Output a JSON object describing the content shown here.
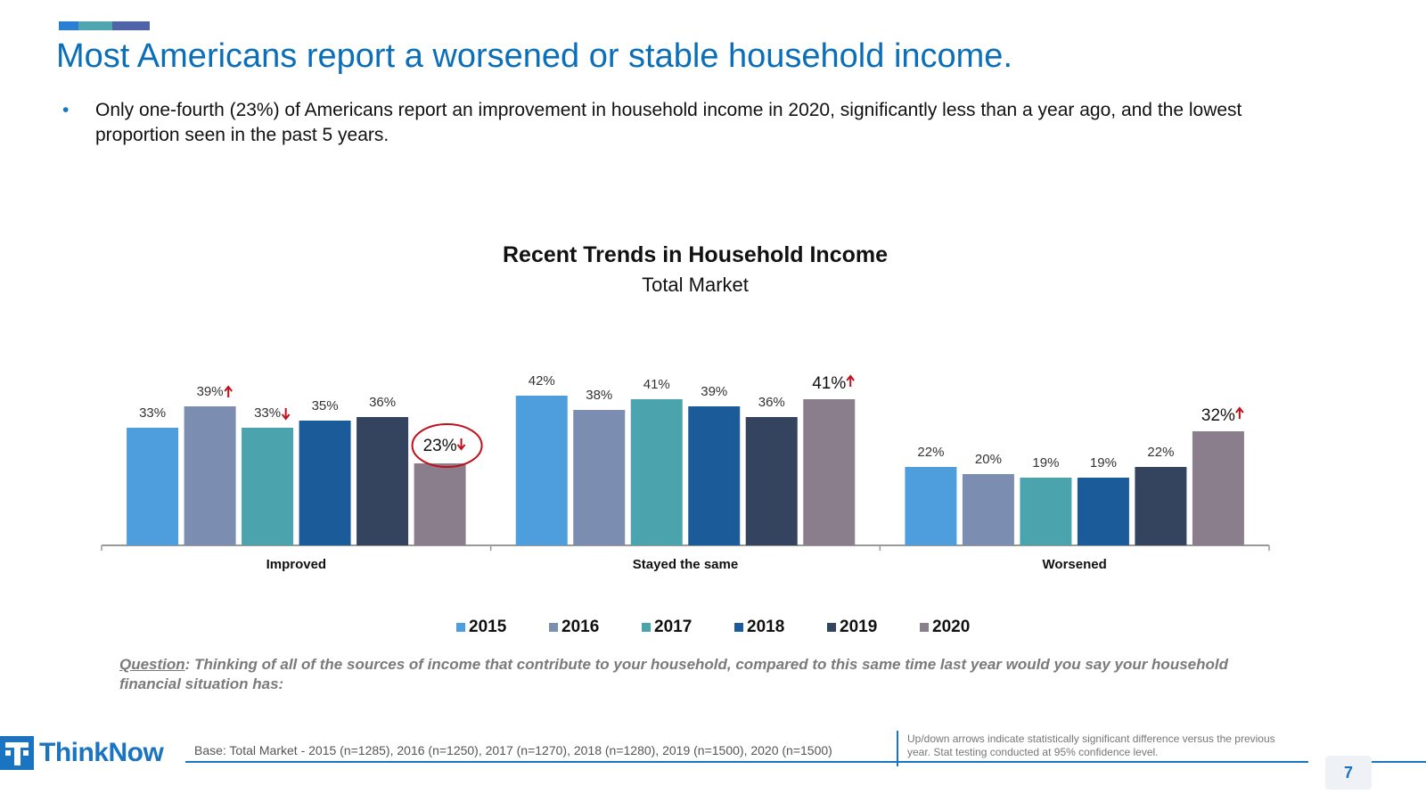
{
  "header": {
    "accent_colors": [
      "#2a7fd4",
      "#4fa6ae",
      "#4e63a8"
    ],
    "title": "Most Americans report a worsened or stable household income.",
    "bullet": "Only one-fourth (23%) of Americans report an improvement in household income in 2020, significantly less than a year ago, and the lowest proportion seen in the past 5 years."
  },
  "chart_data": {
    "type": "bar",
    "title": "Recent Trends in Household Income",
    "subtitle": "Total Market",
    "categories": [
      "Improved",
      "Stayed the same",
      "Worsened"
    ],
    "series": [
      {
        "name": "2015",
        "values": [
          33,
          42,
          22
        ],
        "labels": [
          "33%",
          "42%",
          "22%"
        ],
        "arrows": [
          "",
          "",
          ""
        ],
        "color": "#4e9ede"
      },
      {
        "name": "2016",
        "values": [
          39,
          38,
          20
        ],
        "labels": [
          "39%",
          "38%",
          "20%"
        ],
        "arrows": [
          "up",
          "",
          ""
        ],
        "color": "#7b8eb2"
      },
      {
        "name": "2017",
        "values": [
          33,
          41,
          19
        ],
        "labels": [
          "33%",
          "41%",
          "19%"
        ],
        "arrows": [
          "down",
          "",
          ""
        ],
        "color": "#4ba3ad"
      },
      {
        "name": "2018",
        "values": [
          35,
          39,
          19
        ],
        "labels": [
          "35%",
          "39%",
          "19%"
        ],
        "arrows": [
          "",
          "",
          ""
        ],
        "color": "#1c5b99"
      },
      {
        "name": "2019",
        "values": [
          36,
          36,
          22
        ],
        "labels": [
          "36%",
          "36%",
          "22%"
        ],
        "arrows": [
          "",
          "",
          ""
        ],
        "color": "#34445f"
      },
      {
        "name": "2020",
        "values": [
          23,
          41,
          32
        ],
        "labels": [
          "23%",
          "41%",
          "32%"
        ],
        "arrows": [
          "down",
          "up",
          "up"
        ],
        "color": "#8a7e8c"
      }
    ],
    "highlight": {
      "series": "2020",
      "category": "Improved",
      "circle_color": "#c0101a"
    },
    "arrow_color": "#c0101a",
    "ylim": [
      0,
      42
    ],
    "legend_position": "bottom",
    "grid": false
  },
  "question": {
    "label": "Question",
    "text": ": Thinking of all of the sources of income that contribute to your household, compared to this same time last year would you say your household financial situation has:"
  },
  "footer": {
    "logo_text": "ThinkNow",
    "base": "Base: Total Market - 2015 (n=1285), 2016 (n=1250), 2017 (n=1270), 2018 (n=1280), 2019 (n=1500), 2020 (n=1500)",
    "note": "Up/down arrows indicate statistically significant difference versus the previous year.  Stat testing conducted at 95% confidence level.",
    "page_number": "7"
  }
}
